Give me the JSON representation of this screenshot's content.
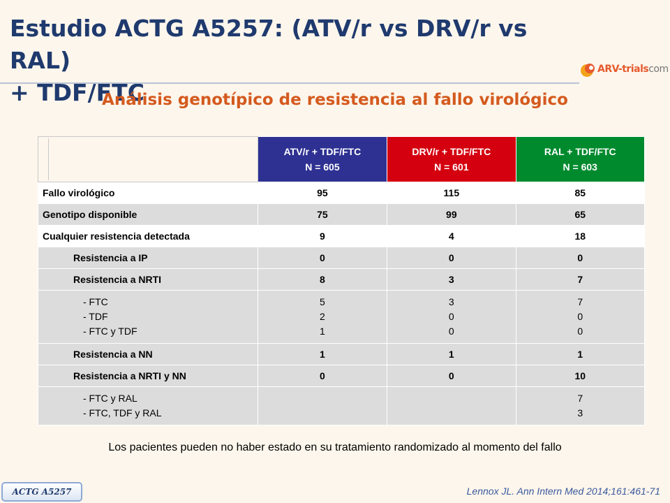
{
  "title": {
    "line1": "Estudio ACTG A5257: (ATV/r vs DRV/r vs RAL)",
    "line2": "+ TDF/FTC"
  },
  "logo": {
    "text_main": "ARV-trials",
    "text_suffix": "com",
    "colors": [
      "#e65a2d",
      "#f4a21c",
      "#777777"
    ]
  },
  "subtitle": "Análisis genotípico de resistencia al fallo virológico",
  "table": {
    "columns": [
      {
        "line1": "ATV/r + TDF/FTC",
        "line2": "N = 605",
        "color": "#2e3192"
      },
      {
        "line1": "DRV/r + TDF/FTC",
        "line2": "N = 601",
        "color": "#d4000f"
      },
      {
        "line1": "RAL + TDF/FTC",
        "line2": "N = 603",
        "color": "#008a2e"
      }
    ],
    "main_rows": [
      {
        "label": "Fallo virológico",
        "values": [
          "95",
          "115",
          "85"
        ]
      },
      {
        "label": "Genotipo disponible",
        "values": [
          "75",
          "99",
          "65"
        ]
      },
      {
        "label": "Cualquier resistencia detectada",
        "values": [
          "9",
          "4",
          "18"
        ]
      }
    ],
    "sub_rows": {
      "ip": {
        "label": "Resistencia a IP",
        "values": [
          "0",
          "0",
          "0"
        ]
      },
      "nrti": {
        "label": "Resistencia a NRTI",
        "values": [
          "8",
          "3",
          "7"
        ]
      },
      "nrti_detail": {
        "labels": [
          "- FTC",
          "- TDF",
          "- FTC y TDF"
        ],
        "values": [
          [
            "5",
            "2",
            "1"
          ],
          [
            "3",
            "0",
            "0"
          ],
          [
            "7",
            "0",
            "0"
          ]
        ]
      },
      "nn": {
        "label": "Resistencia a NN",
        "values": [
          "1",
          "1",
          "1"
        ]
      },
      "nrti_nn": {
        "label": "Resistencia a NRTI y NN",
        "values": [
          "0",
          "0",
          "10"
        ]
      },
      "ral_detail": {
        "labels": [
          "- FTC y RAL",
          "- FTC, TDF y RAL"
        ],
        "values": [
          "7",
          "3"
        ]
      }
    }
  },
  "footnote": "Los pacientes pueden no haber estado en su tratamiento randomizado al momento del fallo",
  "badge": "ACTG A5257",
  "reference": "Lennox JL. Ann Intern Med 2014;161:461-71"
}
